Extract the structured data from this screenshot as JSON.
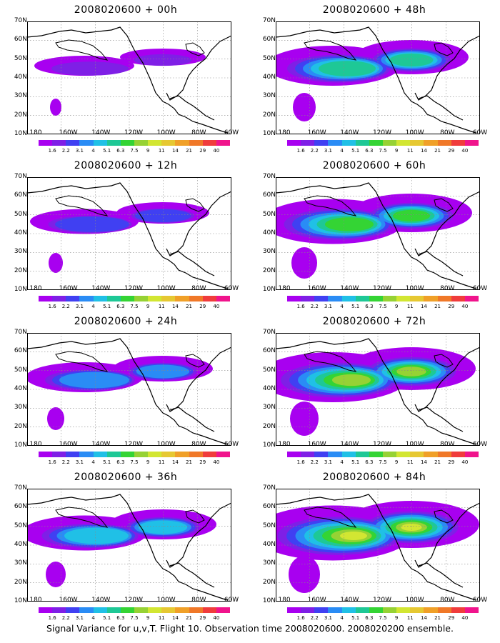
{
  "colorbar": {
    "labels": [
      "1.6",
      "2.2",
      "3.1",
      "4",
      "5.1",
      "6.3",
      "7.5",
      "9",
      "11",
      "14",
      "21",
      "29",
      "40"
    ],
    "colors": [
      "#ffffff",
      "#a800f0",
      "#7f1fe6",
      "#4040f2",
      "#2a8cf5",
      "#20c0e6",
      "#1ec896",
      "#34d434",
      "#96d234",
      "#d2e632",
      "#e6c832",
      "#f0a028",
      "#f07828",
      "#f03c3c",
      "#f0148c"
    ]
  },
  "axes": {
    "lat_labels": [
      "70N",
      "60N",
      "50N",
      "40N",
      "30N",
      "20N",
      "10N"
    ],
    "lon_labels": [
      "180",
      "160W",
      "140W",
      "120W",
      "100W",
      "80W",
      "60W"
    ]
  },
  "panels": [
    {
      "title": "2008020600 + 00h",
      "level": 0
    },
    {
      "title": "2008020600 + 12h",
      "level": 1
    },
    {
      "title": "2008020600 + 24h",
      "level": 2
    },
    {
      "title": "2008020600 + 36h",
      "level": 3
    },
    {
      "title": "2008020600 + 48h",
      "level": 4
    },
    {
      "title": "2008020600 + 60h",
      "level": 5
    },
    {
      "title": "2008020600 + 72h",
      "level": 6
    },
    {
      "title": "2008020600 + 84h",
      "level": 7
    }
  ],
  "caption": "Signal Variance for u,v,T. Flight 10. Observation time 2008020600. 2008020200 ensemble."
}
